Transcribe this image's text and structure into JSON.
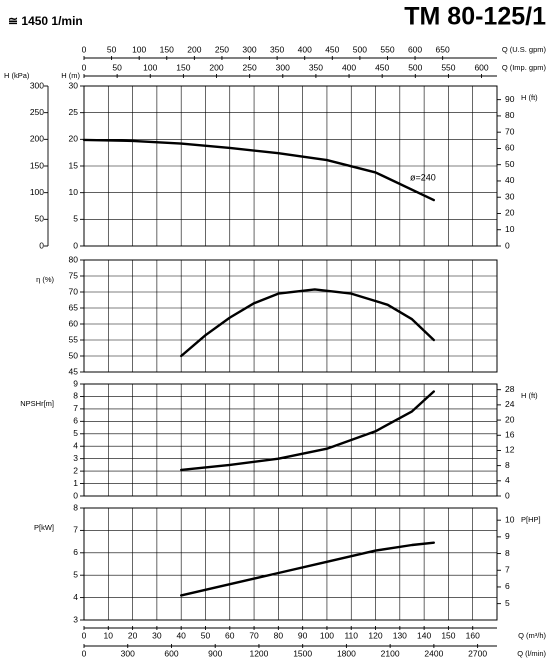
{
  "header": {
    "speed": "≅ 1450 1/min",
    "model": "TM 80-125/1"
  },
  "x_axes": [
    {
      "label": "Q (U.S. gpm)",
      "side": "top",
      "lim": [
        0,
        748.5
      ],
      "ticks": [
        0,
        50,
        100,
        150,
        200,
        250,
        300,
        350,
        400,
        450,
        500,
        550,
        600,
        650
      ]
    },
    {
      "label": "Q (Imp. gpm)",
      "side": "top",
      "lim": [
        0,
        623.3
      ],
      "ticks": [
        0,
        50,
        100,
        150,
        200,
        250,
        300,
        350,
        400,
        450,
        500,
        550,
        600
      ]
    },
    {
      "label": "Q (m³/h)",
      "side": "bottom",
      "grid": true,
      "lim": [
        0,
        170
      ],
      "ticks": [
        0,
        10,
        20,
        30,
        40,
        50,
        60,
        70,
        80,
        90,
        100,
        110,
        120,
        130,
        140,
        150,
        160
      ]
    },
    {
      "label": "Q (l/min)",
      "side": "bottom",
      "lim": [
        0,
        2833
      ],
      "ticks": [
        0,
        300,
        600,
        900,
        1200,
        1500,
        1800,
        2100,
        2400,
        2700
      ]
    }
  ],
  "chart_data": [
    {
      "type": "line",
      "annotation": "ø=240",
      "x": [
        0,
        20,
        40,
        60,
        80,
        100,
        120,
        144
      ],
      "series": [
        {
          "color": "#000000",
          "values": [
            19.9,
            19.7,
            19.2,
            18.4,
            17.4,
            16.1,
            13.8,
            8.6
          ]
        }
      ],
      "yaxes": [
        {
          "label": "H (m)",
          "side": "left",
          "grid": true,
          "lim": [
            0,
            30
          ],
          "ticks": [
            0,
            5,
            10,
            15,
            20,
            25,
            30
          ]
        },
        {
          "label": "H (kPa)",
          "side": "left-outer",
          "lim": [
            0,
            300
          ],
          "ticks": [
            0,
            50,
            100,
            150,
            200,
            250,
            300
          ]
        },
        {
          "label": "H (ft)",
          "side": "right",
          "lim": [
            0,
            98.4
          ],
          "ticks": [
            0,
            10,
            20,
            30,
            40,
            50,
            60,
            70,
            80,
            90
          ]
        }
      ]
    },
    {
      "type": "line",
      "x": [
        40,
        50,
        60,
        70,
        80,
        95,
        110,
        125,
        135,
        144
      ],
      "series": [
        {
          "color": "#000000",
          "values": [
            50,
            56.5,
            62,
            66.5,
            69.5,
            70.8,
            69.5,
            66,
            61.5,
            55
          ]
        }
      ],
      "yaxes": [
        {
          "label": "η (%)",
          "side": "left",
          "grid": true,
          "lim": [
            45,
            80
          ],
          "ticks": [
            45,
            50,
            55,
            60,
            65,
            70,
            75,
            80
          ]
        }
      ]
    },
    {
      "type": "line",
      "x": [
        40,
        60,
        80,
        100,
        120,
        135,
        144
      ],
      "series": [
        {
          "color": "#000000",
          "values": [
            2.1,
            2.5,
            3,
            3.8,
            5.2,
            6.8,
            8.4
          ]
        }
      ],
      "yaxes": [
        {
          "label": "NPSHr[m]",
          "side": "left",
          "grid": true,
          "lim": [
            0,
            9
          ],
          "ticks": [
            0,
            1,
            2,
            3,
            4,
            5,
            6,
            7,
            8,
            9
          ]
        },
        {
          "label": "H (ft)",
          "side": "right",
          "lim": [
            0,
            29.5
          ],
          "ticks": [
            0,
            4,
            8,
            12,
            16,
            20,
            24,
            28
          ]
        }
      ]
    },
    {
      "type": "line",
      "x": [
        40,
        60,
        80,
        100,
        120,
        135,
        144
      ],
      "series": [
        {
          "color": "#000000",
          "values": [
            4.1,
            4.6,
            5.1,
            5.6,
            6.1,
            6.35,
            6.45
          ]
        }
      ],
      "yaxes": [
        {
          "label": "P[kW]",
          "side": "left",
          "grid": true,
          "lim": [
            3,
            8
          ],
          "ticks": [
            3,
            4,
            5,
            6,
            7,
            8
          ]
        },
        {
          "label": "P[HP]",
          "side": "right",
          "lim": [
            4.02,
            10.73
          ],
          "ticks": [
            5,
            6,
            7,
            8,
            9,
            10
          ]
        }
      ]
    }
  ]
}
